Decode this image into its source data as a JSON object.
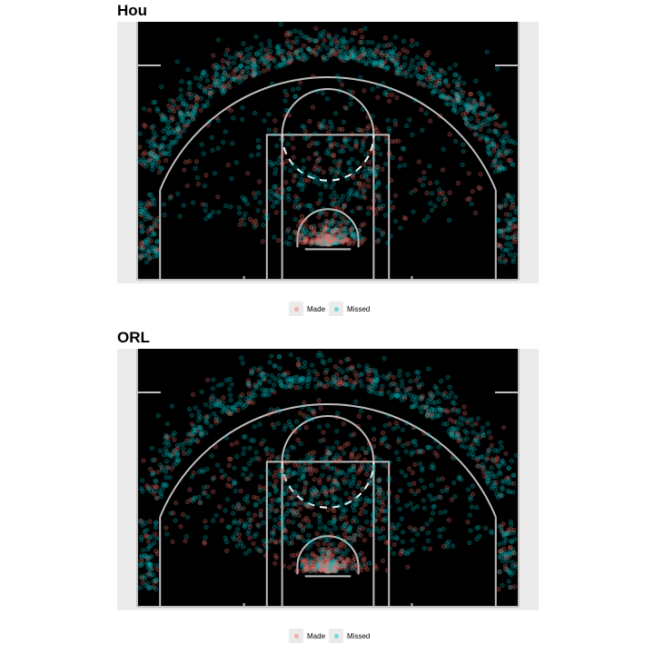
{
  "colors": {
    "panel_bg": "#ebebeb",
    "court_bg": "#000000",
    "court_lines": "#bebebe",
    "made": "#f8766d",
    "missed": "#00bfc4"
  },
  "legend": {
    "made_label": "Made",
    "missed_label": "Missed"
  },
  "chart_data": [
    {
      "type": "scatter",
      "title": "Hou",
      "series": [
        {
          "name": "Made",
          "zones": [
            {
              "zone": "restricted-area",
              "count": 220
            },
            {
              "zone": "paint",
              "count": 70
            },
            {
              "zone": "mid-range",
              "count": 110
            },
            {
              "zone": "above-the-break-three",
              "count": 230
            },
            {
              "zone": "corner-three",
              "count": 45
            }
          ]
        },
        {
          "name": "Missed",
          "zones": [
            {
              "zone": "restricted-area",
              "count": 130
            },
            {
              "zone": "paint",
              "count": 120
            },
            {
              "zone": "mid-range",
              "count": 200
            },
            {
              "zone": "above-the-break-three",
              "count": 620
            },
            {
              "zone": "corner-three",
              "count": 110
            }
          ]
        }
      ],
      "xlim": [
        -25,
        25
      ],
      "ylim": [
        0,
        35
      ],
      "grid": false,
      "legend_position": "bottom"
    },
    {
      "type": "scatter",
      "title": "ORL",
      "series": [
        {
          "name": "Made",
          "zones": [
            {
              "zone": "restricted-area",
              "count": 230
            },
            {
              "zone": "paint",
              "count": 90
            },
            {
              "zone": "mid-range",
              "count": 190
            },
            {
              "zone": "above-the-break-three",
              "count": 150
            },
            {
              "zone": "corner-three",
              "count": 40
            }
          ]
        },
        {
          "name": "Missed",
          "zones": [
            {
              "zone": "restricted-area",
              "count": 120
            },
            {
              "zone": "paint",
              "count": 150
            },
            {
              "zone": "mid-range",
              "count": 380
            },
            {
              "zone": "above-the-break-three",
              "count": 480
            },
            {
              "zone": "corner-three",
              "count": 100
            }
          ]
        }
      ],
      "xlim": [
        -25,
        25
      ],
      "ylim": [
        0,
        35
      ],
      "grid": false,
      "legend_position": "bottom"
    }
  ]
}
